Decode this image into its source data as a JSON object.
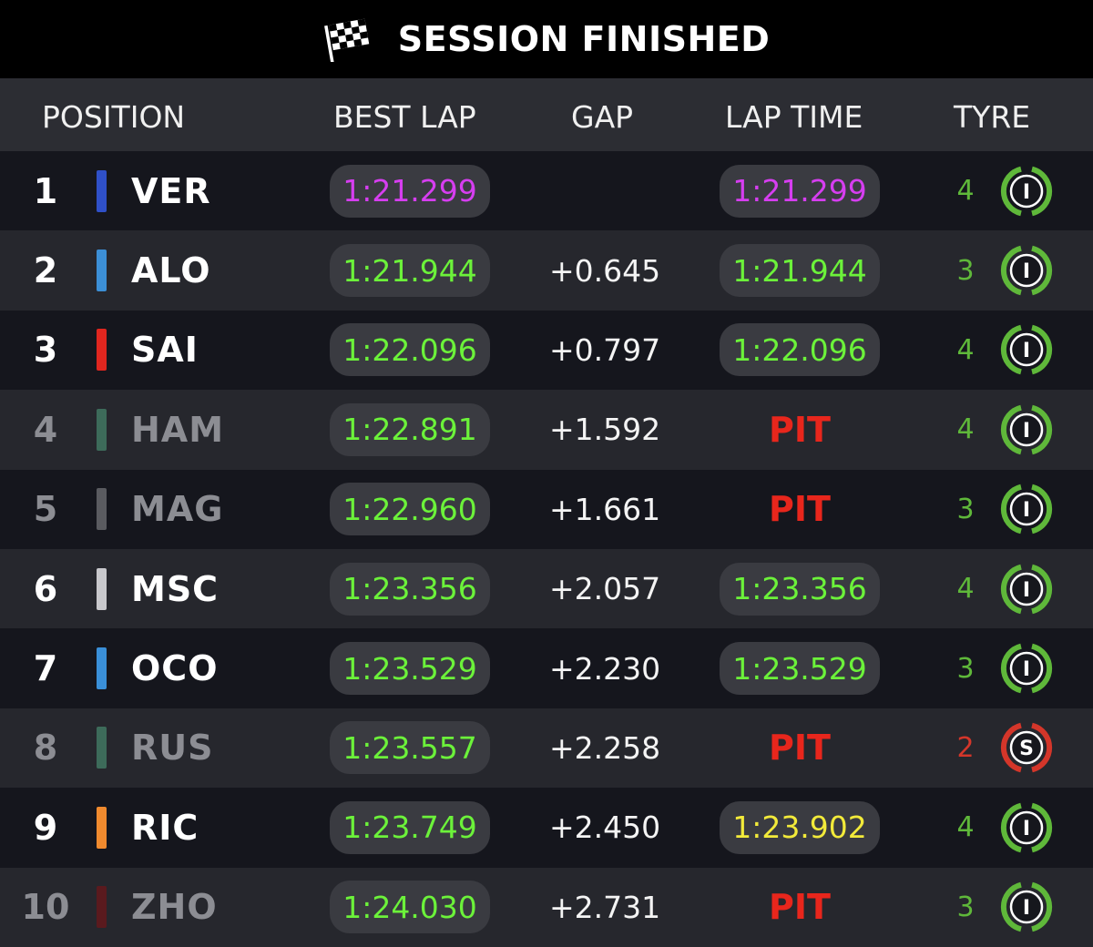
{
  "banner": {
    "title": "SESSION FINISHED",
    "icon": "checkered-flag-icon"
  },
  "header": {
    "position": "POSITION",
    "best_lap": "BEST LAP",
    "gap": "GAP",
    "lap_time": "LAP TIME",
    "tyre": "TYRE"
  },
  "colors": {
    "purple": "#d63ef0",
    "green": "#6cf23a",
    "yellow": "#f2ea3a",
    "pit_red": "#e8261c",
    "tyre_green": "#5fb83a",
    "tyre_red": "#d4362a"
  },
  "rows": [
    {
      "pos": "1",
      "code": "VER",
      "team_color": "#2f50c8",
      "best": "1:21.299",
      "best_color": "#d63ef0",
      "gap": "",
      "lap": "1:21.299",
      "lap_color": "#d63ef0",
      "tyre_laps": "4",
      "tyre": "I",
      "tyre_icon": "intermediate-tyre-icon",
      "dim": false
    },
    {
      "pos": "2",
      "code": "ALO",
      "team_color": "#3c8fd6",
      "best": "1:21.944",
      "best_color": "#6cf23a",
      "gap": "+0.645",
      "lap": "1:21.944",
      "lap_color": "#6cf23a",
      "tyre_laps": "3",
      "tyre": "I",
      "tyre_icon": "intermediate-tyre-icon",
      "dim": false
    },
    {
      "pos": "3",
      "code": "SAI",
      "team_color": "#e0261f",
      "best": "1:22.096",
      "best_color": "#6cf23a",
      "gap": "+0.797",
      "lap": "1:22.096",
      "lap_color": "#6cf23a",
      "tyre_laps": "4",
      "tyre": "I",
      "tyre_icon": "intermediate-tyre-icon",
      "dim": false
    },
    {
      "pos": "4",
      "code": "HAM",
      "team_color": "#3d6b5a",
      "best": "1:22.891",
      "best_color": "#6cf23a",
      "gap": "+1.592",
      "lap": "PIT",
      "lap_color": "#e8261c",
      "tyre_laps": "4",
      "tyre": "I",
      "tyre_icon": "intermediate-tyre-icon",
      "dim": true
    },
    {
      "pos": "5",
      "code": "MAG",
      "team_color": "#5a5b60",
      "best": "1:22.960",
      "best_color": "#6cf23a",
      "gap": "+1.661",
      "lap": "PIT",
      "lap_color": "#e8261c",
      "tyre_laps": "3",
      "tyre": "I",
      "tyre_icon": "intermediate-tyre-icon",
      "dim": true
    },
    {
      "pos": "6",
      "code": "MSC",
      "team_color": "#c8c8cc",
      "best": "1:23.356",
      "best_color": "#6cf23a",
      "gap": "+2.057",
      "lap": "1:23.356",
      "lap_color": "#6cf23a",
      "tyre_laps": "4",
      "tyre": "I",
      "tyre_icon": "intermediate-tyre-icon",
      "dim": false
    },
    {
      "pos": "7",
      "code": "OCO",
      "team_color": "#3a8fd8",
      "best": "1:23.529",
      "best_color": "#6cf23a",
      "gap": "+2.230",
      "lap": "1:23.529",
      "lap_color": "#6cf23a",
      "tyre_laps": "3",
      "tyre": "I",
      "tyre_icon": "intermediate-tyre-icon",
      "dim": false
    },
    {
      "pos": "8",
      "code": "RUS",
      "team_color": "#3d6b5a",
      "best": "1:23.557",
      "best_color": "#6cf23a",
      "gap": "+2.258",
      "lap": "PIT",
      "lap_color": "#e8261c",
      "tyre_laps": "2",
      "tyre": "S",
      "tyre_icon": "soft-tyre-icon",
      "dim": true
    },
    {
      "pos": "9",
      "code": "RIC",
      "team_color": "#f08a2e",
      "best": "1:23.749",
      "best_color": "#6cf23a",
      "gap": "+2.450",
      "lap": "1:23.902",
      "lap_color": "#f2ea3a",
      "tyre_laps": "4",
      "tyre": "I",
      "tyre_icon": "intermediate-tyre-icon",
      "dim": false
    },
    {
      "pos": "10",
      "code": "ZHO",
      "team_color": "#5a1a1e",
      "best": "1:24.030",
      "best_color": "#6cf23a",
      "gap": "+2.731",
      "lap": "PIT",
      "lap_color": "#e8261c",
      "tyre_laps": "3",
      "tyre": "I",
      "tyre_icon": "intermediate-tyre-icon",
      "dim": true
    }
  ]
}
